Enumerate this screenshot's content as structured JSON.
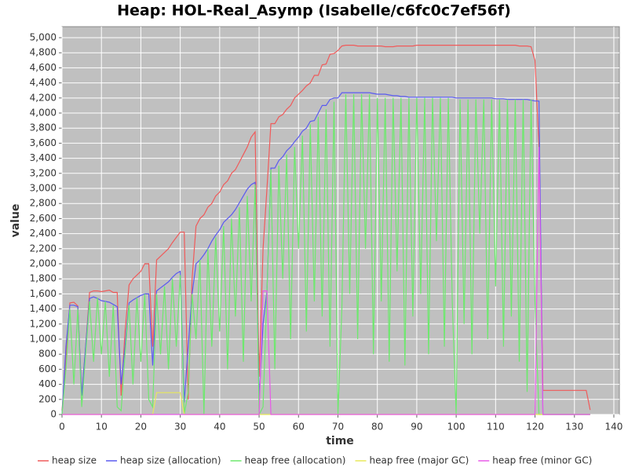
{
  "chart_data": {
    "type": "line",
    "title": "Heap: HOL-Real_Asymp (Isabelle/c6fc0c7ef56f)",
    "x_label": "time",
    "y_label": "value",
    "x": [
      0,
      1,
      2,
      3,
      4,
      5,
      6,
      7,
      8,
      9,
      10,
      11,
      12,
      13,
      14,
      15,
      16,
      17,
      18,
      19,
      20,
      21,
      22,
      23,
      24,
      25,
      26,
      27,
      28,
      29,
      30,
      31,
      32,
      33,
      34,
      35,
      36,
      37,
      38,
      39,
      40,
      41,
      42,
      43,
      44,
      45,
      46,
      47,
      48,
      49,
      50,
      51,
      52,
      53,
      54,
      55,
      56,
      57,
      58,
      59,
      60,
      61,
      62,
      63,
      64,
      65,
      66,
      67,
      68,
      69,
      70,
      71,
      72,
      73,
      74,
      75,
      76,
      77,
      78,
      79,
      80,
      81,
      82,
      83,
      84,
      85,
      86,
      87,
      88,
      89,
      90,
      91,
      92,
      93,
      94,
      95,
      96,
      97,
      98,
      99,
      100,
      101,
      102,
      103,
      104,
      105,
      106,
      107,
      108,
      109,
      110,
      111,
      112,
      113,
      114,
      115,
      116,
      117,
      118,
      119,
      120,
      121,
      122,
      123,
      124,
      125,
      126,
      127,
      128,
      129,
      130,
      131,
      132,
      133,
      134
    ],
    "series": [
      {
        "name": "heap size",
        "color": "#f05a5a",
        "values": [
          50,
          750,
          1480,
          1490,
          1440,
          250,
          900,
          1620,
          1640,
          1640,
          1630,
          1640,
          1650,
          1620,
          1620,
          250,
          1100,
          1720,
          1800,
          1850,
          1900,
          2000,
          2000,
          900,
          2050,
          2100,
          2150,
          2200,
          2280,
          2350,
          2420,
          2420,
          200,
          1800,
          2500,
          2600,
          2650,
          2750,
          2800,
          2900,
          2950,
          3050,
          3100,
          3200,
          3250,
          3350,
          3450,
          3550,
          3680,
          3750,
          500,
          2200,
          3000,
          3860,
          3860,
          3950,
          3980,
          4050,
          4100,
          4200,
          4250,
          4300,
          4360,
          4400,
          4500,
          4500,
          4640,
          4650,
          4780,
          4790,
          4830,
          4890,
          4900,
          4900,
          4900,
          4890,
          4890,
          4890,
          4890,
          4890,
          4890,
          4890,
          4880,
          4880,
          4880,
          4890,
          4890,
          4890,
          4890,
          4890,
          4900,
          4900,
          4900,
          4900,
          4900,
          4900,
          4900,
          4900,
          4900,
          4900,
          4900,
          4900,
          4900,
          4900,
          4900,
          4900,
          4900,
          4900,
          4900,
          4900,
          4900,
          4900,
          4900,
          4900,
          4900,
          4900,
          4890,
          4890,
          4890,
          4880,
          4700,
          3550,
          320,
          320,
          320,
          320,
          320,
          320,
          320,
          320,
          320,
          320,
          320,
          320,
          60
        ]
      },
      {
        "name": "heap size (allocation)",
        "color": "#5a5af0",
        "values": [
          0,
          900,
          1450,
          1450,
          1430,
          250,
          900,
          1540,
          1560,
          1540,
          1510,
          1500,
          1490,
          1460,
          1430,
          400,
          900,
          1480,
          1520,
          1550,
          1580,
          1600,
          1600,
          650,
          1640,
          1680,
          1720,
          1760,
          1820,
          1870,
          1900,
          160,
          900,
          1600,
          2000,
          2050,
          2120,
          2200,
          2300,
          2380,
          2450,
          2550,
          2600,
          2650,
          2720,
          2810,
          2900,
          2990,
          3050,
          3080,
          200,
          1200,
          1640,
          3270,
          3270,
          3370,
          3420,
          3500,
          3550,
          3620,
          3680,
          3760,
          3800,
          3890,
          3900,
          4000,
          4100,
          4100,
          4180,
          4200,
          4200,
          4270,
          4270,
          4270,
          4270,
          4270,
          4270,
          4270,
          4270,
          4260,
          4250,
          4250,
          4250,
          4240,
          4230,
          4230,
          4220,
          4220,
          4210,
          4210,
          4210,
          4210,
          4210,
          4210,
          4210,
          4210,
          4210,
          4210,
          4210,
          4210,
          4200,
          4200,
          4200,
          4200,
          4200,
          4200,
          4200,
          4200,
          4200,
          4200,
          4190,
          4190,
          4190,
          4180,
          4180,
          4180,
          4180,
          4180,
          4180,
          4170,
          4160,
          4160,
          0,
          0,
          0,
          0,
          0,
          0,
          0,
          0,
          0,
          0,
          0,
          0,
          0
        ]
      },
      {
        "name": "heap free (allocation)",
        "color": "#6ee86e",
        "values": [
          0,
          600,
          1400,
          400,
          1400,
          100,
          800,
          1500,
          700,
          1550,
          800,
          1500,
          500,
          1450,
          100,
          50,
          800,
          1450,
          400,
          1550,
          700,
          1600,
          200,
          100,
          1600,
          800,
          1700,
          600,
          1800,
          900,
          1850,
          0,
          300,
          1600,
          1000,
          2050,
          0,
          2200,
          900,
          2350,
          1100,
          2500,
          600,
          2600,
          1300,
          2750,
          700,
          2900,
          1500,
          3050,
          0,
          100,
          1640,
          3250,
          600,
          3300,
          1800,
          3450,
          1000,
          3550,
          2200,
          3700,
          1100,
          3850,
          1500,
          3950,
          1300,
          4050,
          900,
          4150,
          0,
          1400,
          4250,
          1600,
          4250,
          1000,
          4250,
          2200,
          4250,
          800,
          4200,
          1500,
          4200,
          700,
          4200,
          1900,
          4200,
          650,
          4200,
          1300,
          4200,
          1600,
          4200,
          800,
          4200,
          2300,
          4200,
          900,
          4200,
          1500,
          0,
          4180,
          1200,
          4180,
          800,
          4180,
          2400,
          4180,
          1000,
          4180,
          1700,
          4180,
          900,
          4180,
          1300,
          4180,
          700,
          4180,
          300,
          4180,
          1500,
          0,
          0,
          0,
          0,
          0,
          0,
          0,
          0,
          0,
          0,
          0,
          0,
          0,
          0
        ]
      },
      {
        "name": "heap free (major GC)",
        "color": "#e8e85a",
        "values": [
          0,
          0,
          0,
          0,
          0,
          0,
          0,
          0,
          0,
          0,
          0,
          0,
          0,
          0,
          0,
          0,
          0,
          0,
          0,
          0,
          0,
          0,
          0,
          0,
          290,
          290,
          290,
          290,
          290,
          290,
          290,
          0,
          0,
          0,
          0,
          0,
          0,
          0,
          0,
          0,
          0,
          0,
          0,
          0,
          0,
          0,
          0,
          0,
          0,
          0,
          0,
          0,
          0,
          0,
          0,
          0,
          0,
          0,
          0,
          0,
          0,
          0,
          0,
          0,
          0,
          0,
          0,
          0,
          0,
          0,
          0,
          0,
          0,
          0,
          0,
          0,
          0,
          0,
          0,
          0,
          0,
          0,
          0,
          0,
          0,
          0,
          0,
          0,
          0,
          0,
          0,
          0,
          0,
          0,
          0,
          0,
          0,
          0,
          0,
          0,
          0,
          0,
          0,
          0,
          0,
          0,
          0,
          0,
          0,
          0,
          0,
          0,
          0,
          0,
          0,
          0,
          0,
          0,
          0,
          0,
          0,
          0,
          0,
          0,
          0,
          0,
          0,
          0,
          0,
          0,
          0,
          0,
          0,
          0,
          0
        ]
      },
      {
        "name": "heap free (minor GC)",
        "color": "#e85ae8",
        "values": [
          0,
          0,
          0,
          0,
          0,
          0,
          0,
          0,
          0,
          0,
          0,
          0,
          0,
          0,
          0,
          0,
          0,
          0,
          0,
          0,
          0,
          0,
          0,
          0,
          0,
          0,
          0,
          0,
          0,
          0,
          0,
          0,
          0,
          0,
          0,
          0,
          0,
          0,
          0,
          0,
          0,
          0,
          0,
          0,
          0,
          0,
          0,
          0,
          0,
          0,
          0,
          1640,
          1640,
          0,
          0,
          0,
          0,
          0,
          0,
          0,
          0,
          0,
          0,
          0,
          0,
          0,
          0,
          0,
          0,
          0,
          0,
          0,
          0,
          0,
          0,
          0,
          0,
          0,
          0,
          0,
          0,
          0,
          0,
          0,
          0,
          0,
          0,
          0,
          0,
          0,
          0,
          0,
          0,
          0,
          0,
          0,
          0,
          0,
          0,
          0,
          0,
          0,
          0,
          0,
          0,
          0,
          0,
          0,
          0,
          0,
          0,
          0,
          0,
          0,
          0,
          0,
          0,
          0,
          0,
          0,
          0,
          3550,
          0,
          0,
          0,
          0,
          0,
          0,
          0,
          0,
          0,
          0,
          0,
          0,
          0
        ]
      }
    ],
    "xlim": [
      0,
      141.4
    ],
    "ylim": [
      0,
      5146
    ],
    "xticks": [
      0,
      10,
      20,
      30,
      40,
      50,
      60,
      70,
      80,
      90,
      100,
      110,
      120,
      130,
      140
    ],
    "yticks": [
      0,
      200,
      400,
      600,
      800,
      {
        "value": 1000,
        "label": "1,000"
      },
      {
        "value": 1200,
        "label": "1,200"
      },
      {
        "value": 1400,
        "label": "1,400"
      },
      {
        "value": 1600,
        "label": "1,600"
      },
      {
        "value": 1800,
        "label": "1,800"
      },
      {
        "value": 2000,
        "label": "2,000"
      },
      {
        "value": 2200,
        "label": "2,200"
      },
      {
        "value": 2400,
        "label": "2,400"
      },
      {
        "value": 2600,
        "label": "2,600"
      },
      {
        "value": 2800,
        "label": "2,800"
      },
      {
        "value": 3000,
        "label": "3,000"
      },
      {
        "value": 3200,
        "label": "3,200"
      },
      {
        "value": 3400,
        "label": "3,400"
      },
      {
        "value": 3600,
        "label": "3,600"
      },
      {
        "value": 3800,
        "label": "3,800"
      },
      {
        "value": 4000,
        "label": "4,000"
      },
      {
        "value": 4200,
        "label": "4,200"
      },
      {
        "value": 4400,
        "label": "4,400"
      },
      {
        "value": 4600,
        "label": "4,600"
      },
      {
        "value": 4800,
        "label": "4,800"
      },
      {
        "value": 5000,
        "label": "5,000"
      }
    ],
    "grid": true
  }
}
